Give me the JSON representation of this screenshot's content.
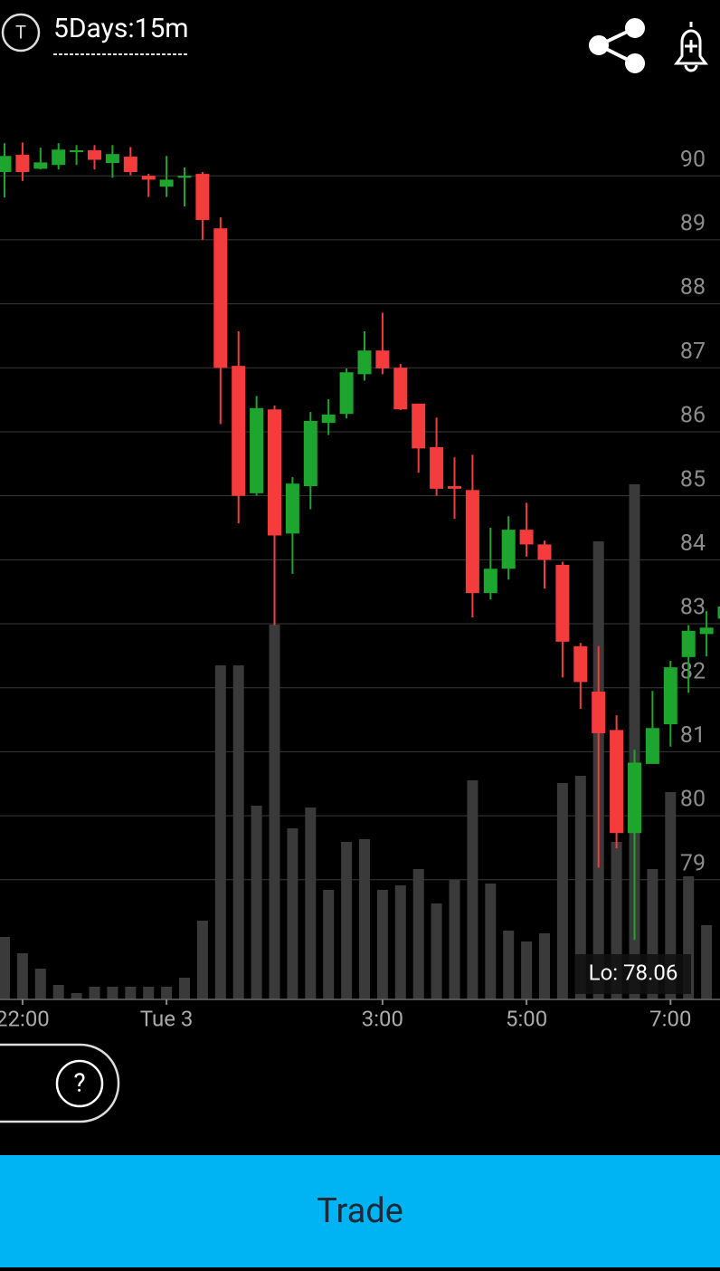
{
  "header": {
    "icon_label": "T",
    "title": "5Days:15m"
  },
  "chart_data": {
    "type": "candlestick",
    "categories": [
      null,
      "22:00",
      null,
      null,
      null,
      null,
      null,
      null,
      null,
      "Tue 3",
      null,
      null,
      null,
      null,
      null,
      null,
      null,
      null,
      null,
      null,
      null,
      "3:00",
      null,
      null,
      null,
      null,
      null,
      null,
      null,
      "5:00",
      null,
      null,
      null,
      null,
      null,
      null,
      null,
      "7:00",
      null,
      null,
      null
    ],
    "open": [
      90.06,
      90.33,
      90.11,
      90.17,
      90.37,
      90.4,
      90.2,
      90.3,
      90.0,
      89.83,
      89.97,
      90.03,
      89.18,
      87.03,
      85.04,
      86.35,
      84.41,
      85.15,
      86.14,
      86.28,
      86.9,
      87.27,
      87.0,
      86.44,
      85.76,
      85.15,
      85.09,
      83.48,
      83.86,
      84.47,
      84.24,
      83.92,
      82.65,
      81.94,
      81.34,
      79.73,
      80.81,
      81.43,
      82.48,
      82.84,
      83.08
    ],
    "high": [
      90.51,
      90.52,
      90.44,
      90.51,
      90.48,
      90.48,
      90.48,
      90.45,
      90.03,
      90.31,
      90.13,
      90.06,
      89.35,
      87.57,
      86.56,
      86.41,
      85.29,
      86.31,
      86.51,
      86.99,
      87.57,
      87.86,
      87.06,
      86.44,
      86.22,
      85.6,
      85.64,
      84.5,
      84.68,
      84.89,
      84.3,
      83.97,
      82.7,
      82.65,
      81.57,
      81.03,
      81.95,
      82.42,
      82.98,
      83.2,
      83.45
    ],
    "low": [
      89.66,
      89.92,
      90.1,
      90.1,
      90.17,
      90.1,
      89.97,
      90.01,
      89.67,
      89.67,
      89.52,
      89.0,
      86.12,
      84.57,
      85.0,
      82.98,
      83.78,
      84.79,
      85.95,
      86.21,
      86.8,
      86.9,
      86.34,
      85.36,
      85.0,
      84.64,
      83.1,
      83.38,
      83.69,
      84.05,
      83.55,
      82.16,
      81.67,
      79.19,
      79.49,
      78.06,
      80.81,
      81.08,
      81.92,
      82.49,
      82.89
    ],
    "close": [
      90.31,
      90.06,
      90.21,
      90.41,
      90.4,
      90.25,
      90.34,
      90.06,
      89.94,
      89.94,
      90.0,
      89.31,
      87.0,
      85.0,
      86.37,
      84.38,
      85.19,
      86.17,
      86.27,
      86.93,
      87.27,
      86.99,
      86.35,
      85.74,
      85.11,
      85.11,
      83.48,
      83.86,
      84.47,
      84.24,
      84.0,
      82.72,
      82.09,
      81.29,
      79.73,
      80.83,
      81.37,
      82.32,
      82.89,
      82.94,
      83.27
    ],
    "volume": [
      69,
      51,
      34,
      16,
      7,
      14,
      14,
      14,
      14,
      14,
      24,
      87,
      369,
      369,
      214,
      414,
      189,
      212,
      121,
      174,
      177,
      121,
      126,
      144,
      106,
      132,
      242,
      128,
      76,
      64,
      73,
      239,
      247,
      506,
      174,
      569,
      144,
      229,
      136,
      82,
      0
    ],
    "up_color": "#1ea52e",
    "down_color": "#f53c3c",
    "volume_color": "#3a3a3a",
    "ylim": [
      77.13,
      91.05
    ],
    "yticks": [
      79,
      80,
      81,
      82,
      83,
      84,
      85,
      86,
      87,
      88,
      89,
      90
    ],
    "grid": true,
    "annotation": "Lo: 78.06"
  },
  "help": "?",
  "button": "Trade"
}
